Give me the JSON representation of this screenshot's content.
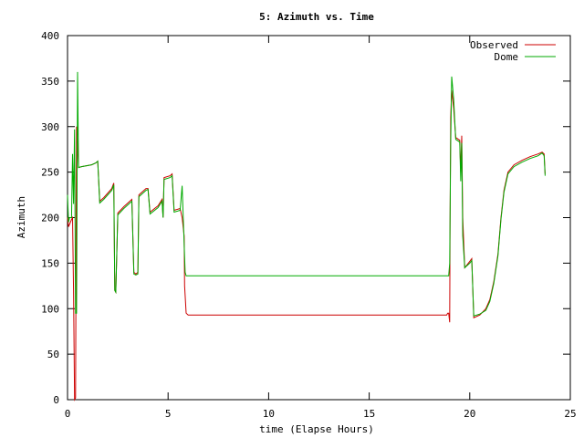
{
  "chart_data": {
    "type": "line",
    "title": "5: Azimuth vs. Time",
    "xlabel": "time (Elapse Hours)",
    "ylabel": "Azimuth",
    "xlim": [
      0,
      25
    ],
    "ylim": [
      0,
      400
    ],
    "x_ticks": [
      0,
      5,
      10,
      15,
      20,
      25
    ],
    "y_ticks": [
      0,
      50,
      100,
      150,
      200,
      250,
      300,
      350,
      400
    ],
    "grid": false,
    "legend_position": "top-right",
    "series": [
      {
        "name": "Observed",
        "color": "#cc0000",
        "points": [
          [
            0.0,
            200
          ],
          [
            0.05,
            190
          ],
          [
            0.2,
            198
          ],
          [
            0.25,
            200
          ],
          [
            0.3,
            120
          ],
          [
            0.35,
            0
          ],
          [
            0.4,
            2
          ],
          [
            0.45,
            300
          ],
          [
            0.5,
            280
          ],
          [
            0.55,
            255
          ],
          [
            0.7,
            256
          ],
          [
            1.2,
            258
          ],
          [
            1.4,
            260
          ],
          [
            1.5,
            262
          ],
          [
            1.6,
            218
          ],
          [
            1.8,
            222
          ],
          [
            2.2,
            232
          ],
          [
            2.3,
            238
          ],
          [
            2.35,
            120
          ],
          [
            2.4,
            118
          ],
          [
            2.5,
            205
          ],
          [
            2.8,
            212
          ],
          [
            3.1,
            218
          ],
          [
            3.2,
            220
          ],
          [
            3.3,
            140
          ],
          [
            3.4,
            138
          ],
          [
            3.5,
            140
          ],
          [
            3.55,
            225
          ],
          [
            3.9,
            232
          ],
          [
            4.0,
            232
          ],
          [
            4.1,
            206
          ],
          [
            4.5,
            213
          ],
          [
            4.7,
            220
          ],
          [
            4.75,
            200
          ],
          [
            4.8,
            244
          ],
          [
            5.1,
            246
          ],
          [
            5.2,
            248
          ],
          [
            5.3,
            208
          ],
          [
            5.6,
            210
          ],
          [
            5.7,
            200
          ],
          [
            5.8,
            180
          ],
          [
            5.82,
            125
          ],
          [
            5.9,
            95
          ],
          [
            6.0,
            93
          ],
          [
            10.0,
            93
          ],
          [
            15.0,
            93
          ],
          [
            18.85,
            93
          ],
          [
            18.9,
            95
          ],
          [
            18.95,
            95
          ],
          [
            19.0,
            85
          ],
          [
            19.02,
            190
          ],
          [
            19.05,
            310
          ],
          [
            19.1,
            340
          ],
          [
            19.2,
            320
          ],
          [
            19.3,
            288
          ],
          [
            19.5,
            285
          ],
          [
            19.55,
            250
          ],
          [
            19.6,
            290
          ],
          [
            19.65,
            200
          ],
          [
            19.75,
            145
          ],
          [
            20.0,
            152
          ],
          [
            20.1,
            155
          ],
          [
            20.2,
            90
          ],
          [
            20.5,
            93
          ],
          [
            20.8,
            100
          ],
          [
            21.0,
            110
          ],
          [
            21.2,
            130
          ],
          [
            21.4,
            160
          ],
          [
            21.55,
            200
          ],
          [
            21.7,
            230
          ],
          [
            21.9,
            250
          ],
          [
            22.2,
            258
          ],
          [
            22.6,
            263
          ],
          [
            23.0,
            267
          ],
          [
            23.4,
            270
          ],
          [
            23.6,
            272
          ],
          [
            23.7,
            270
          ],
          [
            23.75,
            248
          ]
        ]
      },
      {
        "name": "Dome",
        "color": "#00aa00",
        "points": [
          [
            0.0,
            225
          ],
          [
            0.05,
            195
          ],
          [
            0.1,
            200
          ],
          [
            0.2,
            200
          ],
          [
            0.25,
            270
          ],
          [
            0.3,
            215
          ],
          [
            0.35,
            297
          ],
          [
            0.4,
            95
          ],
          [
            0.45,
            95
          ],
          [
            0.5,
            360
          ],
          [
            0.55,
            255
          ],
          [
            0.7,
            256
          ],
          [
            1.2,
            258
          ],
          [
            1.4,
            260
          ],
          [
            1.5,
            262
          ],
          [
            1.6,
            216
          ],
          [
            1.8,
            220
          ],
          [
            2.2,
            230
          ],
          [
            2.3,
            236
          ],
          [
            2.35,
            120
          ],
          [
            2.4,
            118
          ],
          [
            2.5,
            203
          ],
          [
            2.8,
            210
          ],
          [
            3.1,
            216
          ],
          [
            3.2,
            218
          ],
          [
            3.3,
            138
          ],
          [
            3.4,
            137
          ],
          [
            3.5,
            138
          ],
          [
            3.55,
            223
          ],
          [
            3.9,
            230
          ],
          [
            4.0,
            231
          ],
          [
            4.1,
            204
          ],
          [
            4.5,
            211
          ],
          [
            4.7,
            218
          ],
          [
            4.75,
            200
          ],
          [
            4.8,
            242
          ],
          [
            5.1,
            244
          ],
          [
            5.2,
            246
          ],
          [
            5.3,
            206
          ],
          [
            5.6,
            208
          ],
          [
            5.7,
            235
          ],
          [
            5.85,
            140
          ],
          [
            5.9,
            136
          ],
          [
            10.0,
            136
          ],
          [
            15.0,
            136
          ],
          [
            18.95,
            136
          ],
          [
            19.0,
            150
          ],
          [
            19.05,
            280
          ],
          [
            19.1,
            355
          ],
          [
            19.2,
            330
          ],
          [
            19.3,
            286
          ],
          [
            19.5,
            283
          ],
          [
            19.55,
            240
          ],
          [
            19.6,
            282
          ],
          [
            19.65,
            180
          ],
          [
            19.75,
            145
          ],
          [
            20.0,
            150
          ],
          [
            20.1,
            153
          ],
          [
            20.2,
            92
          ],
          [
            20.5,
            94
          ],
          [
            20.8,
            98
          ],
          [
            21.0,
            108
          ],
          [
            21.2,
            128
          ],
          [
            21.4,
            158
          ],
          [
            21.55,
            198
          ],
          [
            21.7,
            228
          ],
          [
            21.9,
            248
          ],
          [
            22.2,
            256
          ],
          [
            22.6,
            261
          ],
          [
            23.0,
            265
          ],
          [
            23.4,
            268
          ],
          [
            23.6,
            271
          ],
          [
            23.7,
            268
          ],
          [
            23.75,
            246
          ]
        ]
      }
    ]
  }
}
